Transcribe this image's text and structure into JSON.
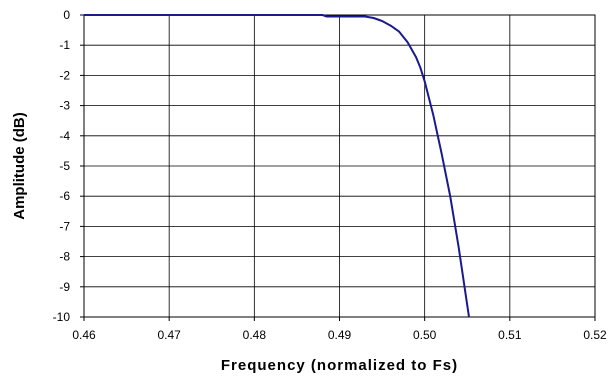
{
  "chart_data": {
    "type": "line",
    "title": "",
    "xlabel": "Frequency (normalized to Fs)",
    "ylabel": "Amplitude (dB)",
    "xlim": [
      0.46,
      0.52
    ],
    "ylim": [
      -10,
      0
    ],
    "x_ticks": [
      0.46,
      0.47,
      0.48,
      0.49,
      0.5,
      0.51,
      0.52
    ],
    "x_tick_labels": [
      "0.46",
      "0.47",
      "0.48",
      "0.49",
      "0.50",
      "0.51",
      "0.52"
    ],
    "y_ticks": [
      0,
      -1,
      -2,
      -3,
      -4,
      -5,
      -6,
      -7,
      -8,
      -9,
      -10
    ],
    "y_tick_labels": [
      "0",
      "-1",
      "-2",
      "-3",
      "-4",
      "-5",
      "-6",
      "-7",
      "-8",
      "-9",
      "-10"
    ],
    "grid": true,
    "legend": "none",
    "series": [
      {
        "color": "#1a1a8c",
        "x": [
          0.46,
          0.47,
          0.48,
          0.485,
          0.488,
          0.4885,
          0.49,
          0.492,
          0.493,
          0.494,
          0.495,
          0.496,
          0.497,
          0.498,
          0.499,
          0.4995,
          0.5,
          0.501,
          0.502,
          0.503,
          0.504,
          0.505,
          0.5052
        ],
        "y": [
          0,
          0,
          0,
          0,
          0,
          -0.05,
          -0.05,
          -0.05,
          -0.05,
          -0.1,
          -0.2,
          -0.35,
          -0.55,
          -0.9,
          -1.4,
          -1.75,
          -2.2,
          -3.3,
          -4.6,
          -6.0,
          -7.7,
          -9.6,
          -10
        ]
      }
    ]
  }
}
